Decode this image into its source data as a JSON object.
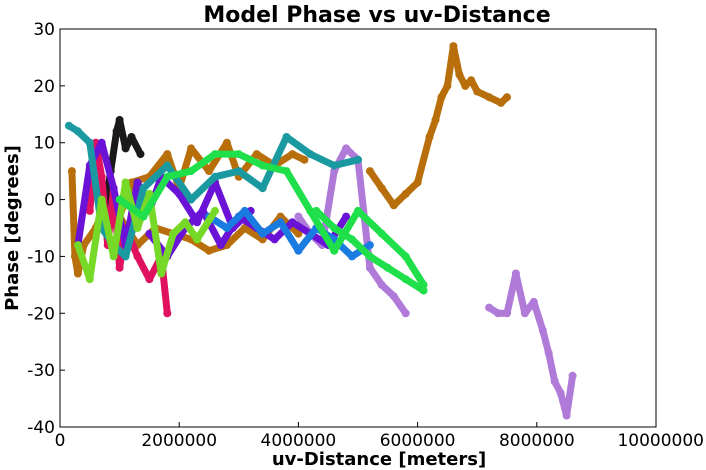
{
  "chart_data": {
    "type": "scatter",
    "title": "Model Phase vs uv-Distance",
    "xlabel": "uv-Distance [meters]",
    "ylabel": "Phase [degrees]",
    "xlim": [
      0,
      10000000
    ],
    "ylim": [
      -40,
      30
    ],
    "x_ticks": [
      0,
      2000000,
      4000000,
      6000000,
      8000000,
      10000000
    ],
    "x_tick_labels": [
      "0",
      "2000000",
      "4000000",
      "6000000",
      "8000000",
      "10000000"
    ],
    "y_ticks": [
      30,
      20,
      10,
      0,
      -10,
      -20,
      -30,
      -40
    ],
    "y_tick_labels": [
      "30",
      "20",
      "10",
      "0",
      "-10",
      "-20",
      "-30",
      "-40"
    ],
    "grid": false,
    "legend": "none",
    "series": [
      {
        "color": "#b86e0a",
        "x": [
          5200000,
          5400000,
          5600000,
          5800000,
          6000000,
          6200000,
          6300000,
          6400000,
          6500000,
          6600000,
          6700000,
          6800000,
          6900000,
          7000000,
          7200000,
          7400000,
          7500000
        ],
        "y": [
          5,
          2,
          -1,
          1,
          3,
          11,
          14,
          18,
          20,
          27,
          22,
          20,
          21,
          19,
          18,
          17,
          18
        ]
      },
      {
        "color": "#b86e0a",
        "x": [
          200000,
          250000,
          300000,
          400000,
          600000,
          800000,
          1000000,
          1200000,
          1500000,
          1800000,
          2000000,
          2200000,
          2500000,
          2800000,
          3000000,
          3300000,
          3600000,
          3900000,
          4100000
        ],
        "y": [
          5,
          -10,
          -13,
          -8,
          -5,
          0,
          -3,
          3,
          4,
          8,
          2,
          9,
          5,
          10,
          4,
          8,
          6,
          8,
          7
        ]
      },
      {
        "color": "#b86e0a",
        "x": [
          1000000,
          1300000,
          1600000,
          1900000,
          2200000,
          2500000,
          2800000,
          3100000,
          3400000,
          3700000,
          4000000
        ],
        "y": [
          -3,
          -8,
          -5,
          -6,
          -7,
          -9,
          -8,
          -5,
          -7,
          -3,
          -6
        ]
      },
      {
        "color": "#b07ad9",
        "x": [
          4000000,
          4200000,
          4400000,
          4600000,
          4800000,
          5000000,
          5200000,
          5400000,
          5600000,
          5800000
        ],
        "y": [
          -3,
          -6,
          -8,
          5,
          9,
          7,
          -12,
          -15,
          -17,
          -20
        ]
      },
      {
        "color": "#b07ad9",
        "x": [
          7200000,
          7350000,
          7500000,
          7650000,
          7800000,
          7950000,
          8100000,
          8200000,
          8300000,
          8400000,
          8500000,
          8600000
        ],
        "y": [
          -19,
          -20,
          -20,
          -13,
          -20,
          -18,
          -23,
          -27,
          -32,
          -34,
          -38,
          -31
        ]
      },
      {
        "color": "#1a1a1a",
        "x": [
          750000,
          850000,
          950000,
          1000000,
          1100000,
          1200000,
          1350000
        ],
        "y": [
          -2,
          5,
          12,
          14,
          9,
          11,
          8
        ]
      },
      {
        "color": "#e0125f",
        "x": [
          500000,
          600000,
          700000,
          800000,
          900000,
          1000000,
          1100000,
          1300000,
          1500000,
          1700000,
          1800000
        ],
        "y": [
          -2,
          10,
          4,
          -8,
          2,
          -12,
          -5,
          -10,
          -14,
          -10,
          -20
        ]
      },
      {
        "color": "#6a12d6",
        "x": [
          300000,
          500000,
          700000,
          900000,
          1100000,
          1300000,
          1500000,
          1700000,
          2000000,
          2300000,
          2600000,
          2900000,
          3200000
        ],
        "y": [
          -8,
          6,
          10,
          2,
          -8,
          3,
          -2,
          4,
          1,
          -4,
          3,
          -5,
          -2
        ]
      },
      {
        "color": "#6a12d6",
        "x": [
          1500000,
          1800000,
          2100000,
          2400000,
          2700000,
          3000000,
          3300000,
          3600000,
          3900000,
          4200000,
          4500000,
          4800000
        ],
        "y": [
          -6,
          -10,
          -5,
          -2,
          -8,
          -3,
          -5,
          -7,
          -4,
          -6,
          -8,
          -3
        ]
      },
      {
        "color": "#1a9aa0",
        "x": [
          150000,
          300000,
          500000,
          700000,
          900000,
          1100000,
          1400000,
          1800000,
          2200000,
          2600000,
          3000000,
          3400000,
          3800000,
          4200000,
          4600000,
          5000000
        ],
        "y": [
          13,
          12,
          10,
          -5,
          -8,
          -10,
          2,
          6,
          0,
          4,
          5,
          2,
          11,
          8,
          6,
          7
        ]
      },
      {
        "color": "#1a7be0",
        "x": [
          2500000,
          2800000,
          3100000,
          3400000,
          3700000,
          4000000,
          4300000,
          4600000,
          4900000,
          5200000
        ],
        "y": [
          -3,
          -5,
          -2,
          -6,
          -4,
          -9,
          -5,
          -7,
          -10,
          -8
        ]
      },
      {
        "color": "#77d927",
        "x": [
          300000,
          500000,
          700000,
          900000,
          1100000,
          1300000,
          1500000,
          1700000,
          1900000,
          2100000,
          2300000,
          2600000
        ],
        "y": [
          -8,
          -14,
          0,
          -10,
          3,
          -5,
          1,
          -13,
          -6,
          -4,
          -7,
          -2
        ]
      },
      {
        "color": "#1fe04a",
        "x": [
          1000000,
          1400000,
          1800000,
          2200000,
          2600000,
          3000000,
          3400000,
          3800000,
          4200000,
          4600000,
          5000000,
          5400000,
          5800000,
          6100000
        ],
        "y": [
          0,
          -3,
          4,
          5,
          8,
          8,
          6,
          5,
          -2,
          -9,
          -2,
          -6,
          -10,
          -15
        ]
      },
      {
        "color": "#1fe04a",
        "x": [
          4300000,
          4600000,
          4900000,
          5200000,
          5500000,
          5800000,
          6100000
        ],
        "y": [
          -2,
          -5,
          -7,
          -10,
          -12,
          -14,
          -16
        ]
      }
    ]
  }
}
